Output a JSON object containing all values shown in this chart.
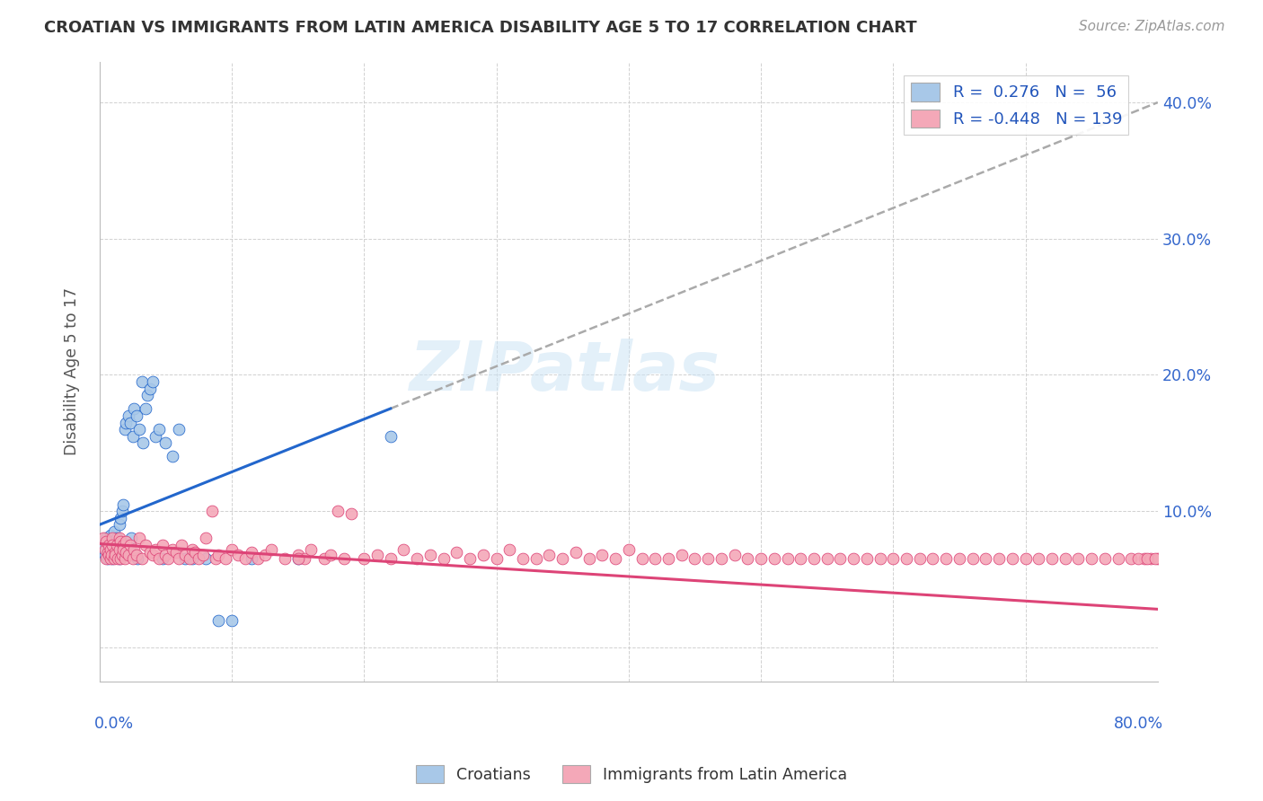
{
  "title": "CROATIAN VS IMMIGRANTS FROM LATIN AMERICA DISABILITY AGE 5 TO 17 CORRELATION CHART",
  "source": "Source: ZipAtlas.com",
  "ylabel": "Disability Age 5 to 17",
  "ytick_labels": [
    "",
    "10.0%",
    "20.0%",
    "30.0%",
    "40.0%"
  ],
  "ytick_values": [
    0.0,
    0.1,
    0.2,
    0.3,
    0.4
  ],
  "xlim": [
    0.0,
    0.8
  ],
  "ylim": [
    -0.025,
    0.43
  ],
  "watermark": "ZIPatlas",
  "croatian_color": "#a8c8e8",
  "latin_color": "#f4a8b8",
  "trendline_croatian_color": "#2266cc",
  "trendline_latin_color": "#dd4477",
  "trendline_dashed_color": "#aaaaaa",
  "trendline_c_x0": 0.0,
  "trendline_c_y0": 0.09,
  "trendline_c_x1": 0.8,
  "trendline_c_y1": 0.4,
  "trendline_c_solid_x1": 0.22,
  "trendline_l_x0": 0.0,
  "trendline_l_y0": 0.076,
  "trendline_l_x1": 0.8,
  "trendline_l_y1": 0.028,
  "croatian_x": [
    0.003,
    0.004,
    0.005,
    0.005,
    0.006,
    0.007,
    0.007,
    0.008,
    0.008,
    0.009,
    0.01,
    0.01,
    0.011,
    0.012,
    0.012,
    0.013,
    0.014,
    0.015,
    0.015,
    0.016,
    0.016,
    0.017,
    0.018,
    0.018,
    0.019,
    0.02,
    0.021,
    0.022,
    0.023,
    0.024,
    0.025,
    0.026,
    0.027,
    0.028,
    0.029,
    0.03,
    0.032,
    0.033,
    0.035,
    0.036,
    0.038,
    0.04,
    0.042,
    0.045,
    0.048,
    0.05,
    0.055,
    0.06,
    0.065,
    0.07,
    0.08,
    0.09,
    0.1,
    0.115,
    0.15,
    0.22
  ],
  "croatian_y": [
    0.075,
    0.068,
    0.08,
    0.072,
    0.065,
    0.07,
    0.078,
    0.075,
    0.082,
    0.068,
    0.072,
    0.065,
    0.085,
    0.075,
    0.068,
    0.08,
    0.072,
    0.065,
    0.09,
    0.068,
    0.095,
    0.1,
    0.075,
    0.105,
    0.16,
    0.165,
    0.075,
    0.17,
    0.165,
    0.08,
    0.155,
    0.175,
    0.068,
    0.17,
    0.065,
    0.16,
    0.195,
    0.15,
    0.175,
    0.185,
    0.19,
    0.195,
    0.155,
    0.16,
    0.065,
    0.15,
    0.14,
    0.16,
    0.065,
    0.065,
    0.065,
    0.02,
    0.02,
    0.065,
    0.065,
    0.155
  ],
  "latin_x": [
    0.003,
    0.004,
    0.005,
    0.005,
    0.006,
    0.007,
    0.007,
    0.008,
    0.008,
    0.009,
    0.01,
    0.01,
    0.011,
    0.012,
    0.012,
    0.013,
    0.014,
    0.015,
    0.015,
    0.016,
    0.016,
    0.017,
    0.018,
    0.018,
    0.019,
    0.02,
    0.02,
    0.022,
    0.023,
    0.025,
    0.026,
    0.028,
    0.03,
    0.032,
    0.035,
    0.038,
    0.04,
    0.042,
    0.045,
    0.048,
    0.05,
    0.052,
    0.055,
    0.058,
    0.06,
    0.062,
    0.065,
    0.068,
    0.07,
    0.072,
    0.075,
    0.078,
    0.08,
    0.085,
    0.088,
    0.09,
    0.095,
    0.1,
    0.105,
    0.11,
    0.115,
    0.12,
    0.125,
    0.13,
    0.14,
    0.15,
    0.155,
    0.16,
    0.17,
    0.175,
    0.18,
    0.185,
    0.19,
    0.2,
    0.21,
    0.22,
    0.23,
    0.24,
    0.25,
    0.26,
    0.27,
    0.28,
    0.29,
    0.3,
    0.31,
    0.32,
    0.34,
    0.35,
    0.36,
    0.37,
    0.38,
    0.39,
    0.4,
    0.42,
    0.44,
    0.46,
    0.48,
    0.5,
    0.52,
    0.54,
    0.56,
    0.58,
    0.6,
    0.62,
    0.64,
    0.66,
    0.68,
    0.7,
    0.72,
    0.74,
    0.76,
    0.78,
    0.79,
    0.795,
    0.8,
    0.15,
    0.33,
    0.41,
    0.43,
    0.45,
    0.47,
    0.49,
    0.51,
    0.53,
    0.55,
    0.57,
    0.59,
    0.61,
    0.63,
    0.65,
    0.67,
    0.69,
    0.71,
    0.73,
    0.75,
    0.77,
    0.785,
    0.792,
    0.798
  ],
  "latin_y": [
    0.08,
    0.072,
    0.078,
    0.065,
    0.07,
    0.068,
    0.075,
    0.065,
    0.072,
    0.068,
    0.08,
    0.075,
    0.065,
    0.07,
    0.068,
    0.075,
    0.065,
    0.072,
    0.08,
    0.065,
    0.078,
    0.068,
    0.075,
    0.072,
    0.065,
    0.078,
    0.07,
    0.068,
    0.075,
    0.065,
    0.072,
    0.068,
    0.08,
    0.065,
    0.075,
    0.07,
    0.068,
    0.072,
    0.065,
    0.075,
    0.068,
    0.065,
    0.072,
    0.07,
    0.065,
    0.075,
    0.068,
    0.065,
    0.072,
    0.07,
    0.065,
    0.068,
    0.08,
    0.1,
    0.065,
    0.068,
    0.065,
    0.072,
    0.068,
    0.065,
    0.07,
    0.065,
    0.068,
    0.072,
    0.065,
    0.068,
    0.065,
    0.072,
    0.065,
    0.068,
    0.1,
    0.065,
    0.098,
    0.065,
    0.068,
    0.065,
    0.072,
    0.065,
    0.068,
    0.065,
    0.07,
    0.065,
    0.068,
    0.065,
    0.072,
    0.065,
    0.068,
    0.065,
    0.07,
    0.065,
    0.068,
    0.065,
    0.072,
    0.065,
    0.068,
    0.065,
    0.068,
    0.065,
    0.065,
    0.065,
    0.065,
    0.065,
    0.065,
    0.065,
    0.065,
    0.065,
    0.065,
    0.065,
    0.065,
    0.065,
    0.065,
    0.065,
    0.065,
    0.065,
    0.065,
    0.065,
    0.065,
    0.065,
    0.065,
    0.065,
    0.065,
    0.065,
    0.065,
    0.065,
    0.065,
    0.065,
    0.065,
    0.065,
    0.065,
    0.065,
    0.065,
    0.065,
    0.065,
    0.065,
    0.065,
    0.065,
    0.065,
    0.065,
    0.065
  ]
}
